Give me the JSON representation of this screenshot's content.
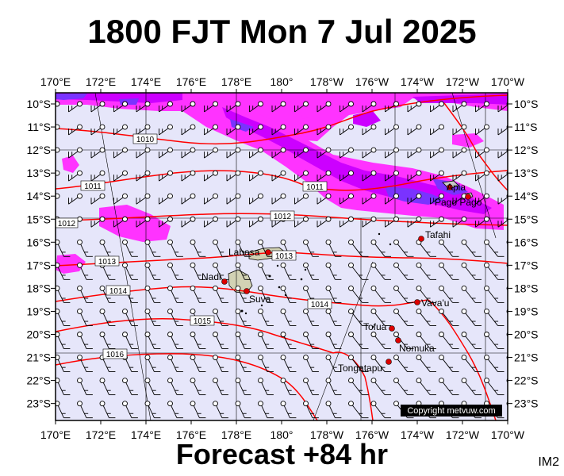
{
  "title": "1800 FJT Mon 7 Jul 2025",
  "subtitle": "Forecast +84 hr",
  "product_code": "IM2",
  "copyright": "Copyright metvuw.com",
  "axes": {
    "lon_labels": [
      "170°E",
      "172°E",
      "174°E",
      "176°E",
      "178°E",
      "180°",
      "178°W",
      "176°W",
      "174°W",
      "172°W",
      "170°W"
    ],
    "lat_labels": [
      "10°S",
      "11°S",
      "12°S",
      "13°S",
      "14°S",
      "15°S",
      "16°S",
      "17°S",
      "18°S",
      "19°S",
      "20°S",
      "21°S",
      "22°S",
      "23°S"
    ]
  },
  "isobars": [
    {
      "label": "1010"
    },
    {
      "label": "1011"
    },
    {
      "label": "1011"
    },
    {
      "label": "1012"
    },
    {
      "label": "1012"
    },
    {
      "label": "1013"
    },
    {
      "label": "1013"
    },
    {
      "label": "1014"
    },
    {
      "label": "1014"
    },
    {
      "label": "1015"
    },
    {
      "label": "1016"
    }
  ],
  "places": [
    {
      "name": "Apia"
    },
    {
      "name": "Pago Pago"
    },
    {
      "name": "Tafahi"
    },
    {
      "name": "Labasa"
    },
    {
      "name": "Nadi"
    },
    {
      "name": "Suva"
    },
    {
      "name": "Vava'u"
    },
    {
      "name": "Tofua"
    },
    {
      "name": "Nomuka"
    },
    {
      "name": "Tongatapu"
    }
  ],
  "colors": {
    "ocean": "#e6e6fa",
    "rain_light": "#ff33ff",
    "rain_mid": "#cc00ff",
    "rain_heavy": "#7a33ff",
    "isobar": "#ff0000",
    "city": "#dd0000"
  }
}
